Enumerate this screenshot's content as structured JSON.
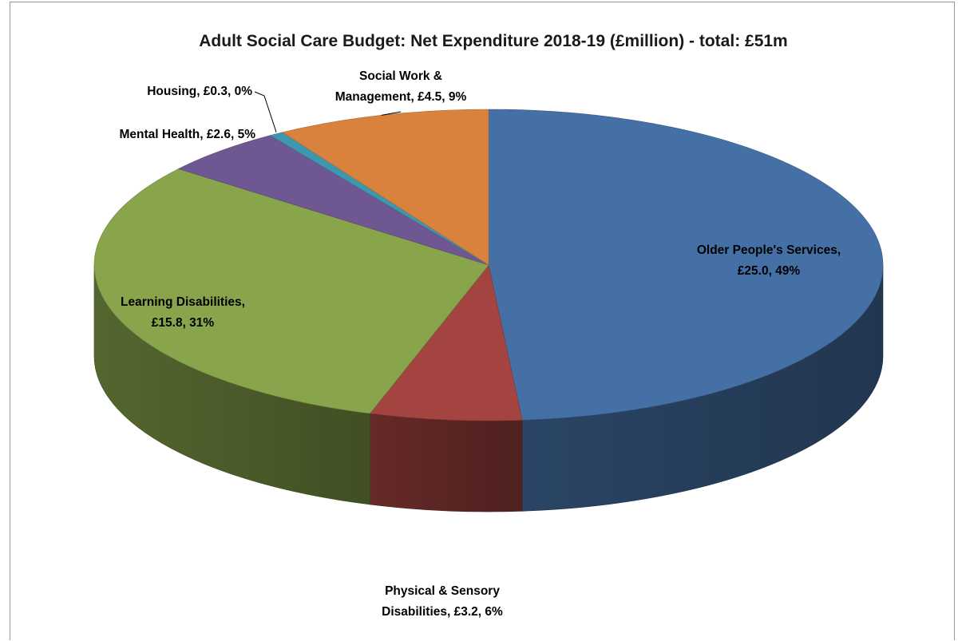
{
  "chart_data": {
    "type": "pie",
    "style": "3d",
    "title": "Adult Social Care Budget: Net Expenditure 2018-19 (£million) - total: £51m",
    "unit": "£million",
    "slices": [
      {
        "name": "Older People's Services",
        "value": 25.0,
        "percent": 49,
        "color": "#4570A5",
        "label_lines": [
          "Older People's Services,",
          "£25.0, 49%"
        ]
      },
      {
        "name": "Physical & Sensory Disabilities",
        "value": 3.2,
        "percent": 6,
        "color": "#A44441",
        "label_lines": [
          "Physical & Sensory",
          "Disabilities, £3.2, 6%"
        ]
      },
      {
        "name": "Learning Disabilities",
        "value": 15.8,
        "percent": 31,
        "color": "#88A54C",
        "label_lines": [
          "Learning Disabilities,",
          "£15.8, 31%"
        ]
      },
      {
        "name": "Mental Health",
        "value": 2.6,
        "percent": 5,
        "color": "#6F5791",
        "label_lines": [
          "Mental Health, £2.6, 5%"
        ]
      },
      {
        "name": "Housing",
        "value": 0.3,
        "percent": 0,
        "color": "#3E96AF",
        "label_lines": [
          "Housing, £0.3, 0%"
        ]
      },
      {
        "name": "Social Work & Management",
        "value": 4.5,
        "percent": 9,
        "color": "#D8823D",
        "label_lines": [
          "Social Work &",
          "Management, £4.5, 9%"
        ]
      }
    ]
  }
}
